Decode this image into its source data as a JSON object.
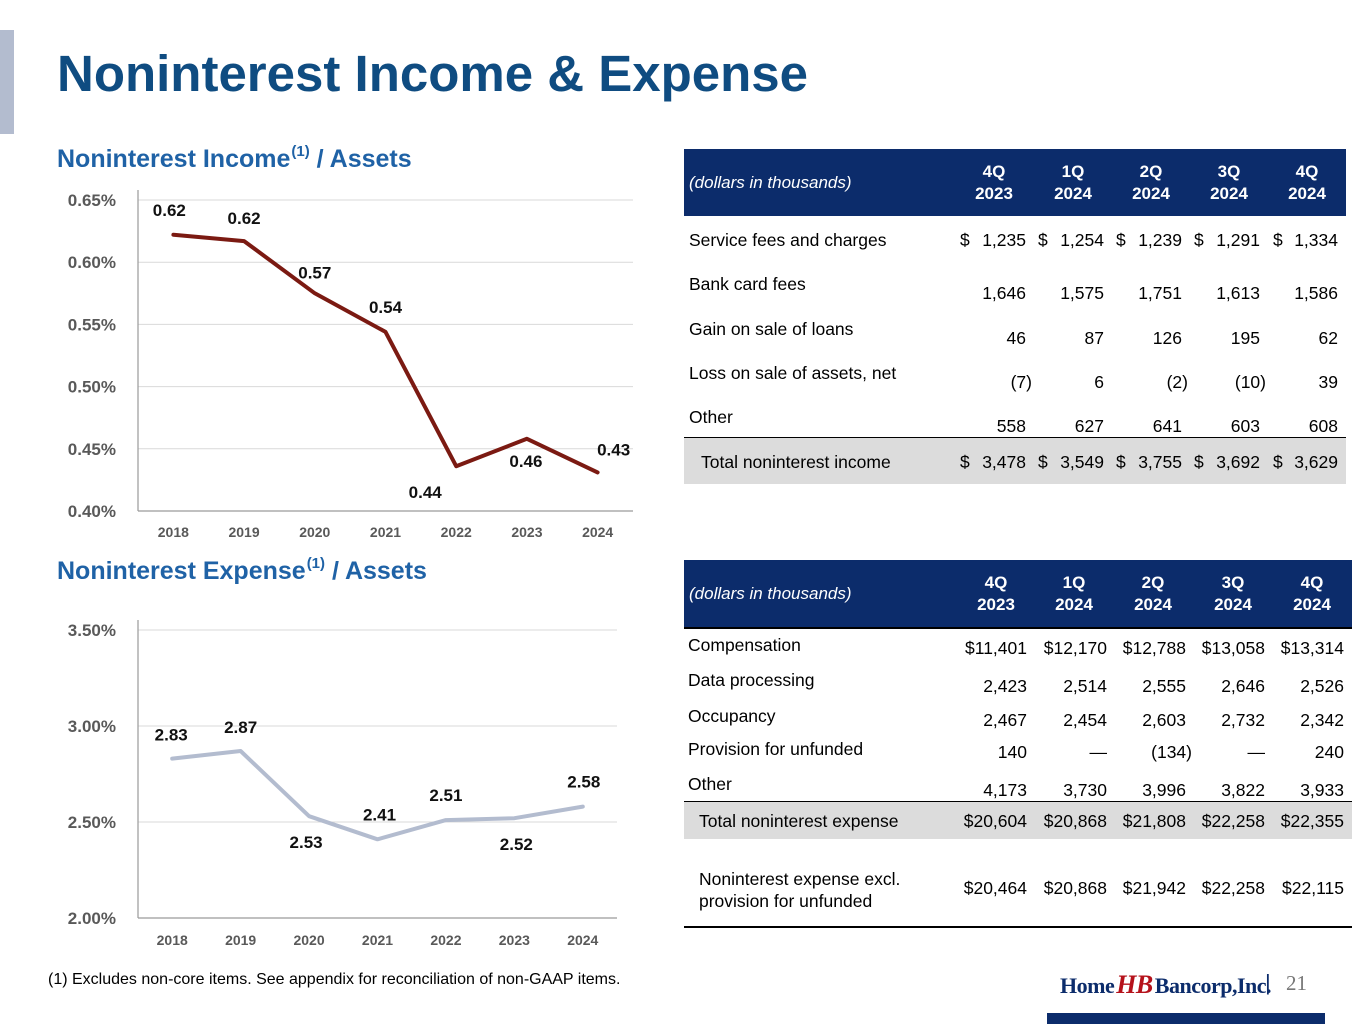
{
  "header": {
    "title": "Noninterest Income & Expense",
    "page_number": "21",
    "footnote": "(1)   Excludes non-core items. See appendix for reconciliation of non-GAAP items."
  },
  "brand": {
    "logo_home": "Home",
    "logo_mark": "HB",
    "logo_bancorp": "Bancorp,Inc.",
    "separator": "|",
    "navy": "#0c2c6b",
    "title_blue": "#0f4c81",
    "red": "#b5121b"
  },
  "chart_data": [
    {
      "type": "line",
      "title": "Noninterest Income",
      "title_sup": "(1)",
      "title_suffix": "/ Assets",
      "x": [
        "2018",
        "2019",
        "2020",
        "2021",
        "2022",
        "2023",
        "2024"
      ],
      "values": [
        0.622,
        0.617,
        0.575,
        0.544,
        0.436,
        0.458,
        0.431
      ],
      "data_labels": [
        "0.62",
        "0.62",
        "0.57",
        "0.54",
        "0.44",
        "0.46",
        "0.43"
      ],
      "yticks": [
        "0.65%",
        "0.60%",
        "0.55%",
        "0.50%",
        "0.45%",
        "0.40%"
      ],
      "ylim": [
        0.4,
        0.65
      ],
      "color": "#7b1a12",
      "grid": true
    },
    {
      "type": "line",
      "title": "Noninterest Expense",
      "title_sup": "(1)",
      "title_suffix": "/ Assets",
      "x": [
        "2018",
        "2019",
        "2020",
        "2021",
        "2022",
        "2023",
        "2024"
      ],
      "values": [
        2.83,
        2.87,
        2.53,
        2.41,
        2.51,
        2.52,
        2.58
      ],
      "data_labels": [
        "2.83",
        "2.87",
        "2.53",
        "2.41",
        "2.51",
        "2.52",
        "2.58"
      ],
      "yticks": [
        "3.50%",
        "3.00%",
        "2.50%",
        "2.00%"
      ],
      "ylim": [
        2.0,
        3.5
      ],
      "color": "#b3bccf",
      "grid": true
    }
  ],
  "income_table": {
    "caption": "(dollars in thousands)",
    "columns": [
      {
        "line1": "4Q",
        "line2": "2023"
      },
      {
        "line1": "1Q",
        "line2": "2024"
      },
      {
        "line1": "2Q",
        "line2": "2024"
      },
      {
        "line1": "3Q",
        "line2": "2024"
      },
      {
        "line1": "4Q",
        "line2": "2024"
      }
    ],
    "rows": [
      {
        "label": "Service fees and charges",
        "dollar": true,
        "values": [
          "1,235",
          "1,254",
          "1,239",
          "1,291",
          "1,334"
        ]
      },
      {
        "label": "Bank card fees",
        "dollar": false,
        "values": [
          "1,646",
          "1,575",
          "1,751",
          "1,613",
          "1,586"
        ]
      },
      {
        "label": "Gain on sale of loans",
        "dollar": false,
        "values": [
          "46",
          "87",
          "126",
          "195",
          "62"
        ]
      },
      {
        "label": "Loss on sale of assets, net",
        "dollar": false,
        "values": [
          "(7)",
          "6",
          "(2)",
          "(10)",
          "39"
        ]
      },
      {
        "label": "Other",
        "dollar": false,
        "values": [
          "558",
          "627",
          "641",
          "603",
          "608"
        ]
      }
    ],
    "total": {
      "label": "Total noninterest income",
      "dollar": true,
      "values": [
        "3,478",
        "3,549",
        "3,755",
        "3,692",
        "3,629"
      ]
    }
  },
  "expense_table": {
    "caption": "(dollars in thousands)",
    "columns": [
      {
        "line1": "4Q",
        "line2": "2023"
      },
      {
        "line1": "1Q",
        "line2": "2024"
      },
      {
        "line1": "2Q",
        "line2": "2024"
      },
      {
        "line1": "3Q",
        "line2": "2024"
      },
      {
        "line1": "4Q",
        "line2": "2024"
      }
    ],
    "rows": [
      {
        "label": "Compensation",
        "values": [
          "$11,401",
          "$12,170",
          "$12,788",
          "$13,058",
          "$13,314"
        ]
      },
      {
        "label": "Data processing",
        "values": [
          "2,423",
          "2,514",
          "2,555",
          "2,646",
          "2,526"
        ]
      },
      {
        "label": "Occupancy",
        "values": [
          "2,467",
          "2,454",
          "2,603",
          "2,732",
          "2,342"
        ]
      },
      {
        "label": "Provision for unfunded",
        "values": [
          "140",
          "—",
          "(134)",
          "—",
          "240"
        ]
      },
      {
        "label": "Other",
        "values": [
          "4,173",
          "3,730",
          "3,996",
          "3,822",
          "3,933"
        ]
      }
    ],
    "total": {
      "label": "Total noninterest expense",
      "values": [
        "$20,604",
        "$20,868",
        "$21,808",
        "$22,258",
        "$22,355"
      ]
    },
    "excl": {
      "label_line1": "Noninterest expense excl.",
      "label_line2": "provision for unfunded",
      "values": [
        "$20,464",
        "$20,868",
        "$21,942",
        "$22,258",
        "$22,115"
      ]
    }
  }
}
